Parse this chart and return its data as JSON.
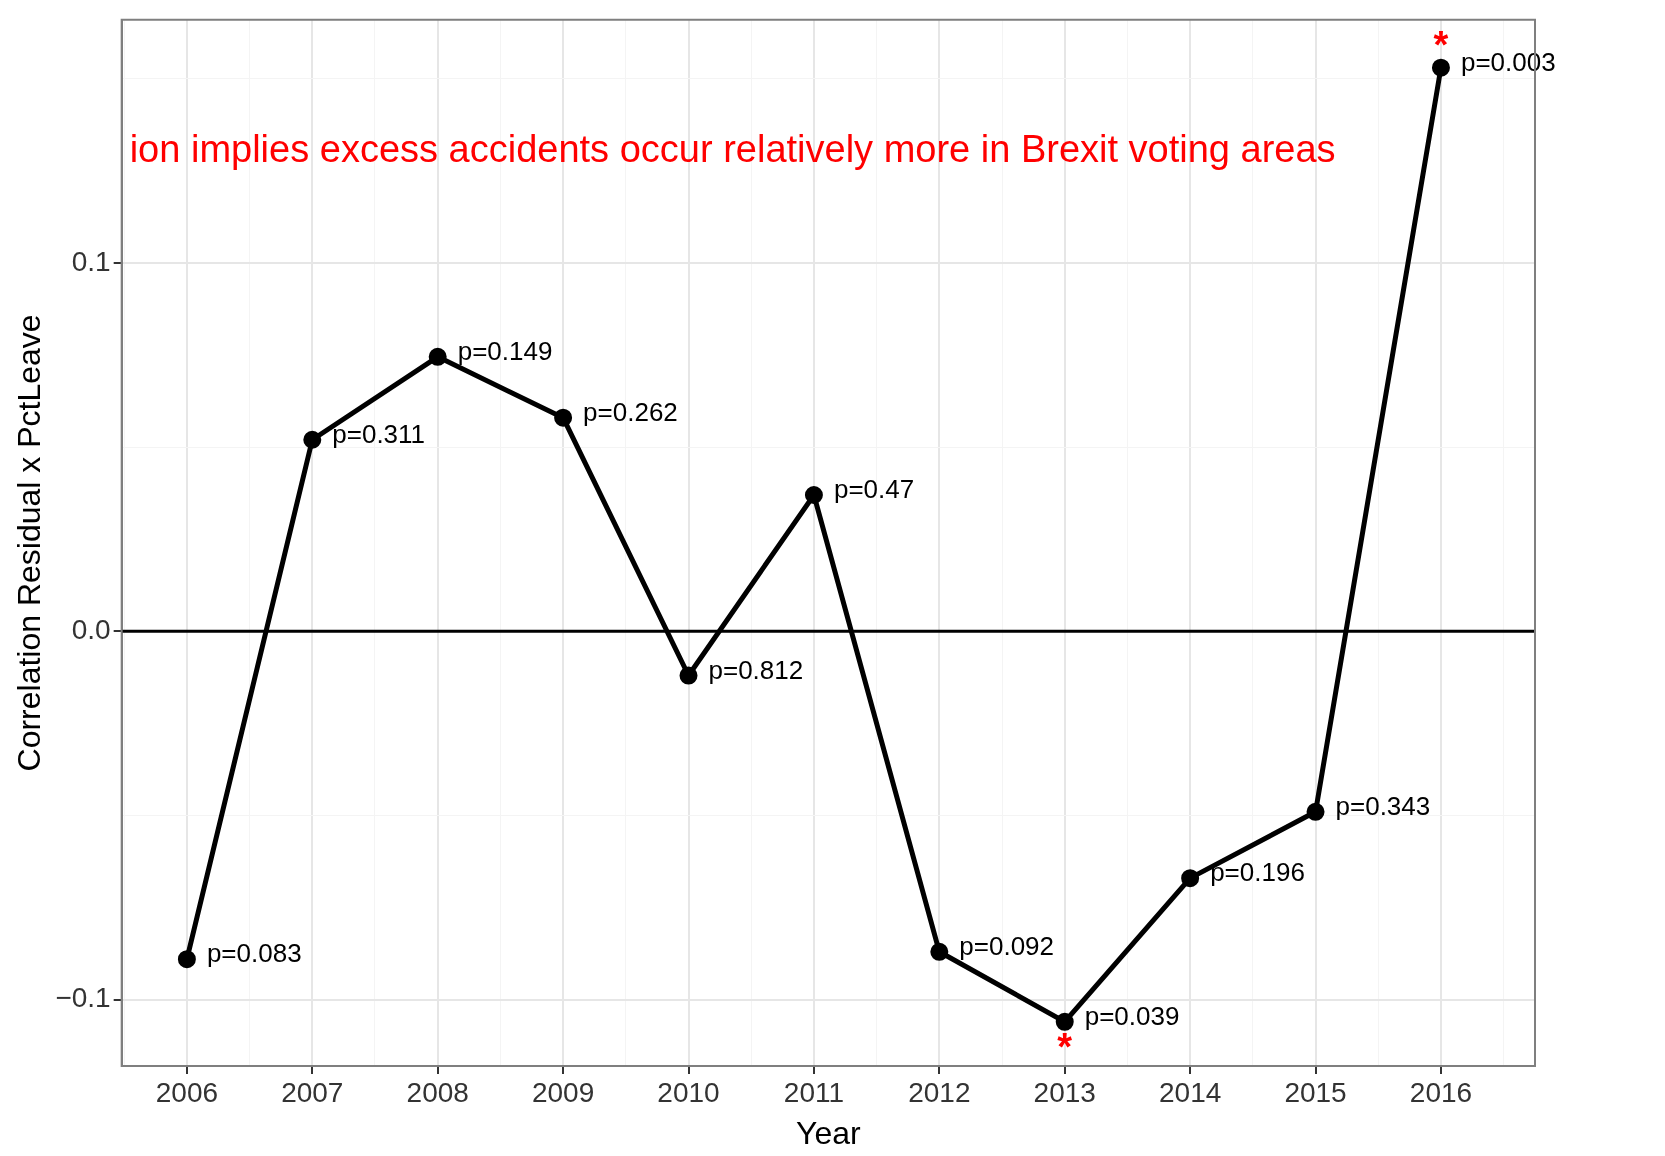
{
  "chart_data": {
    "type": "line",
    "xlabel": "Year",
    "ylabel": "Correlation Residual x PctLeave",
    "x": [
      2006,
      2007,
      2008,
      2009,
      2010,
      2011,
      2012,
      2013,
      2014,
      2015,
      2016
    ],
    "series": [
      {
        "color": "#000000",
        "values": [
          -0.089,
          0.052,
          0.0745,
          0.058,
          -0.012,
          0.037,
          -0.087,
          -0.106,
          -0.067,
          -0.049,
          0.153
        ]
      }
    ],
    "xlim": [
      2005.48,
      2016.75
    ],
    "xticks": [
      {
        "value": 2005.5,
        "label": null
      },
      2006,
      {
        "value": 2006.5,
        "label": null
      },
      2007,
      {
        "value": 2007.5,
        "label": null
      },
      2008,
      {
        "value": 2008.5,
        "label": null
      },
      2009,
      {
        "value": 2009.5,
        "label": null
      },
      2010,
      {
        "value": 2010.5,
        "label": null
      },
      2011,
      {
        "value": 2011.5,
        "label": null
      },
      2012,
      {
        "value": 2012.5,
        "label": null
      },
      2013,
      {
        "value": 2013.5,
        "label": null
      },
      2014,
      {
        "value": 2014.5,
        "label": null
      },
      2015,
      {
        "value": 2015.5,
        "label": null
      },
      2016,
      {
        "value": 2016.5,
        "label": null
      }
    ],
    "ylim": [
      -0.118,
      0.166
    ],
    "yticks": [
      {
        "value": -0.1,
        "label": "−0.1"
      },
      {
        "value": -0.05,
        "label": null
      },
      {
        "value": 0,
        "label": "0.0"
      },
      {
        "value": 0.05,
        "label": null
      },
      {
        "value": 0.1,
        "label": "0.1"
      },
      {
        "value": 0.15,
        "label": null
      }
    ],
    "grid": true,
    "marker": "circle",
    "line_style": "solid",
    "legend": false,
    "ref_lines": [
      {
        "axis": "y",
        "value": 0,
        "color": "#000000"
      }
    ],
    "annotations": [
      "ion implies excess accidents occur relatively more in Brexit voting areas",
      {
        "text": "p=0.083",
        "x": 2006,
        "y": -0.089
      },
      {
        "text": "p=0.311",
        "x": 2007,
        "y": 0.052
      },
      {
        "text": "p=0.149",
        "x": 2008,
        "y": 0.0745
      },
      {
        "text": "p=0.262",
        "x": 2009,
        "y": 0.058
      },
      {
        "text": "p=0.812",
        "x": 2010,
        "y": -0.012
      },
      {
        "text": "p=0.47",
        "x": 2011,
        "y": 0.037
      },
      {
        "text": "p=0.092",
        "x": 2012,
        "y": -0.087
      },
      {
        "text": "p=0.039",
        "x": 2013,
        "y": -0.106
      },
      {
        "text": "p=0.196",
        "x": 2014,
        "y": -0.067
      },
      {
        "text": "p=0.343",
        "x": 2015,
        "y": -0.049
      },
      {
        "text": "p=0.003",
        "x": 2016,
        "y": 0.153
      },
      {
        "text": "*",
        "x": 2013,
        "y": -0.106
      },
      {
        "text": "*",
        "x": 2016,
        "y": 0.153
      }
    ]
  }
}
